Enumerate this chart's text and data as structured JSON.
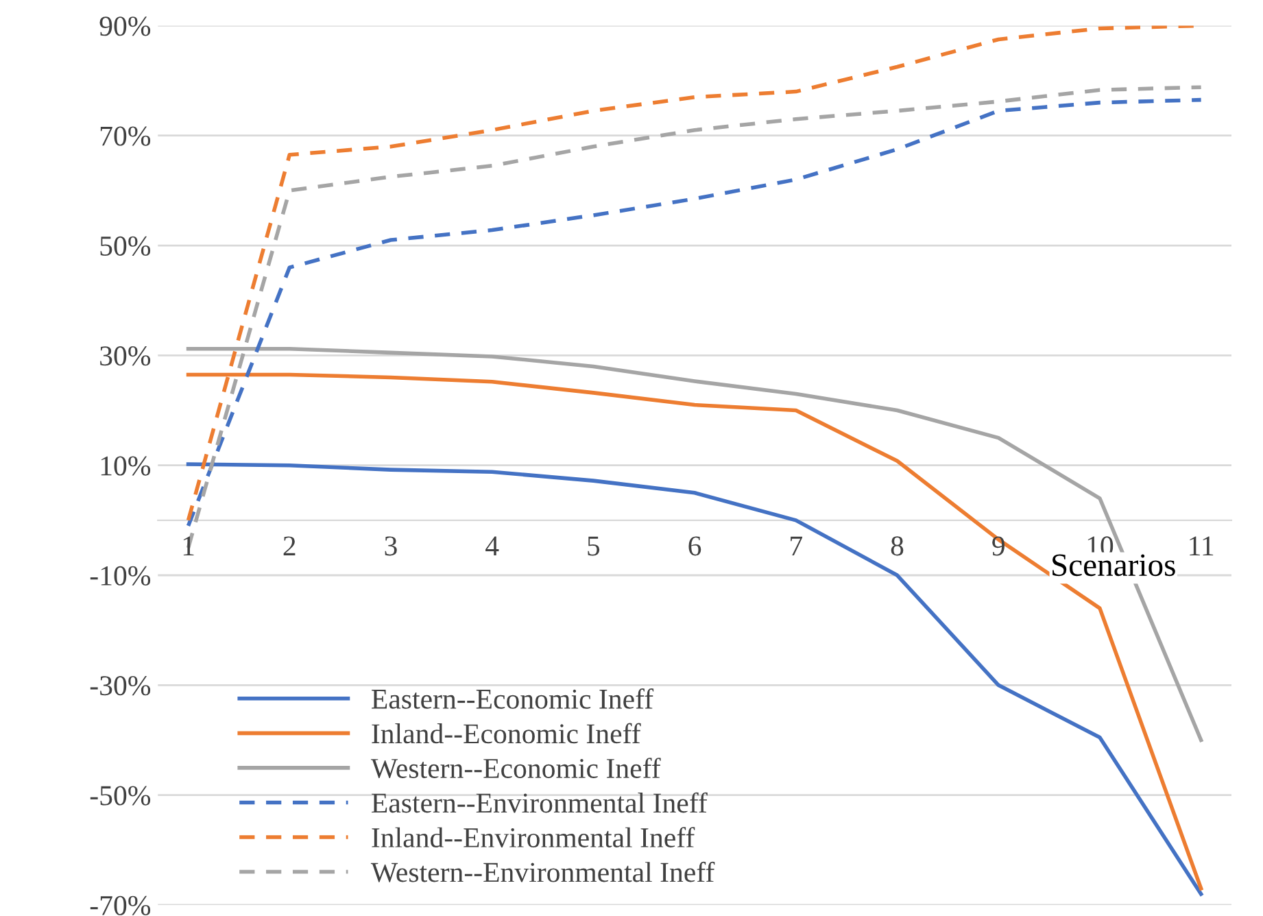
{
  "chart_data": {
    "type": "line",
    "xlabel": "Scenarios",
    "categories": [
      "1",
      "2",
      "3",
      "4",
      "5",
      "6",
      "7",
      "8",
      "9",
      "10",
      "11"
    ],
    "ylim": [
      -70,
      90
    ],
    "yticks": [
      {
        "value": -70,
        "label": "-70%"
      },
      {
        "value": -50,
        "label": "-50%"
      },
      {
        "value": -30,
        "label": "-30%"
      },
      {
        "value": -10,
        "label": "-10%"
      },
      {
        "value": 10,
        "label": "10%"
      },
      {
        "value": 30,
        "label": "30%"
      },
      {
        "value": 50,
        "label": "50%"
      },
      {
        "value": 70,
        "label": "70%"
      },
      {
        "value": 90,
        "label": "90%"
      }
    ],
    "grid": "y",
    "legend": "bottom left",
    "marker": "none",
    "series": [
      {
        "name": "Eastern--Economic Ineff",
        "color": "#4472c4",
        "line_style": "solid",
        "values": [
          10.2,
          10,
          9.2,
          8.8,
          7.2,
          5,
          0,
          -10,
          -30,
          -39.5,
          -68
        ]
      },
      {
        "name": "Inland--Economic Ineff",
        "color": "#ed7d31",
        "line_style": "solid",
        "values": [
          26.5,
          26.5,
          26,
          25.2,
          23.2,
          21,
          20,
          10.8,
          -3.5,
          -16,
          -67
        ]
      },
      {
        "name": "Western--Economic Ineff",
        "color": "#a5a5a5",
        "line_style": "solid",
        "values": [
          31.2,
          31.2,
          30.5,
          29.8,
          28,
          25.3,
          23,
          20,
          15,
          4,
          -40
        ]
      },
      {
        "name": "Eastern--Environmental Ineff",
        "color": "#4472c4",
        "line_style": "dashed",
        "values": [
          -1,
          46,
          51,
          52.8,
          55.5,
          58.5,
          62,
          67.5,
          74.5,
          76,
          76.5
        ]
      },
      {
        "name": "Inland--Environmental Ineff",
        "color": "#ed7d31",
        "line_style": "dashed",
        "values": [
          0,
          66.5,
          68,
          71,
          74.5,
          77,
          78,
          82.5,
          87.5,
          89.5,
          90
        ]
      },
      {
        "name": "Western--Environmental Ineff",
        "color": "#a5a5a5",
        "line_style": "dashed",
        "values": [
          -5,
          60,
          62.5,
          64.5,
          68,
          71,
          73,
          74.5,
          76.2,
          78.3,
          78.8
        ]
      }
    ]
  }
}
